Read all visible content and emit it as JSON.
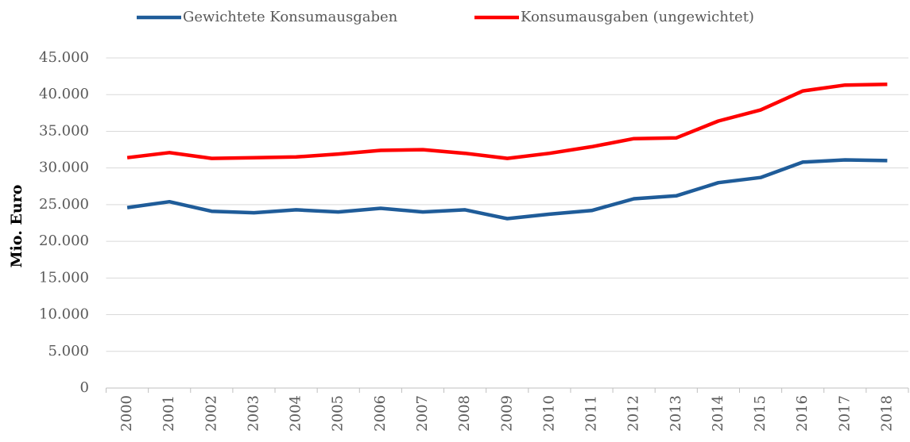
{
  "chart_data": {
    "type": "line",
    "y_label": "Mio. Euro",
    "categories": [
      "2000",
      "2001",
      "2002",
      "2003",
      "2004",
      "2005",
      "2006",
      "2007",
      "2008",
      "2009",
      "2010",
      "2011",
      "2012",
      "2013",
      "2014",
      "2015",
      "2016",
      "2017",
      "2018"
    ],
    "series": [
      {
        "name": "Gewichtete Konsumausgaben",
        "color": "#1f5c99",
        "values": [
          24600,
          25400,
          24100,
          23900,
          24300,
          24000,
          24500,
          24000,
          24300,
          23100,
          23700,
          24200,
          25800,
          26200,
          28000,
          28700,
          30800,
          31100,
          31000
        ]
      },
      {
        "name": "Konsumausgaben (ungewichtet)",
        "color": "#ff0000",
        "values": [
          31400,
          32100,
          31300,
          31400,
          31500,
          31900,
          32400,
          32500,
          32000,
          31300,
          32000,
          32900,
          34000,
          34100,
          36400,
          37900,
          40500,
          41300,
          41400
        ]
      }
    ],
    "ylim": [
      0,
      45000
    ],
    "yticks": [
      0,
      {
        "value": 5000,
        "label": "5.000"
      },
      {
        "value": 10000,
        "label": "10.000"
      },
      {
        "value": 15000,
        "label": "15.000"
      },
      {
        "value": 20000,
        "label": "20.000"
      },
      {
        "value": 25000,
        "label": "25.000"
      },
      {
        "value": 30000,
        "label": "30.000"
      },
      {
        "value": 35000,
        "label": "35.000"
      },
      {
        "value": 40000,
        "label": "40.000"
      },
      {
        "value": 45000,
        "label": "45.000"
      }
    ],
    "grid": true,
    "legend": "top"
  }
}
